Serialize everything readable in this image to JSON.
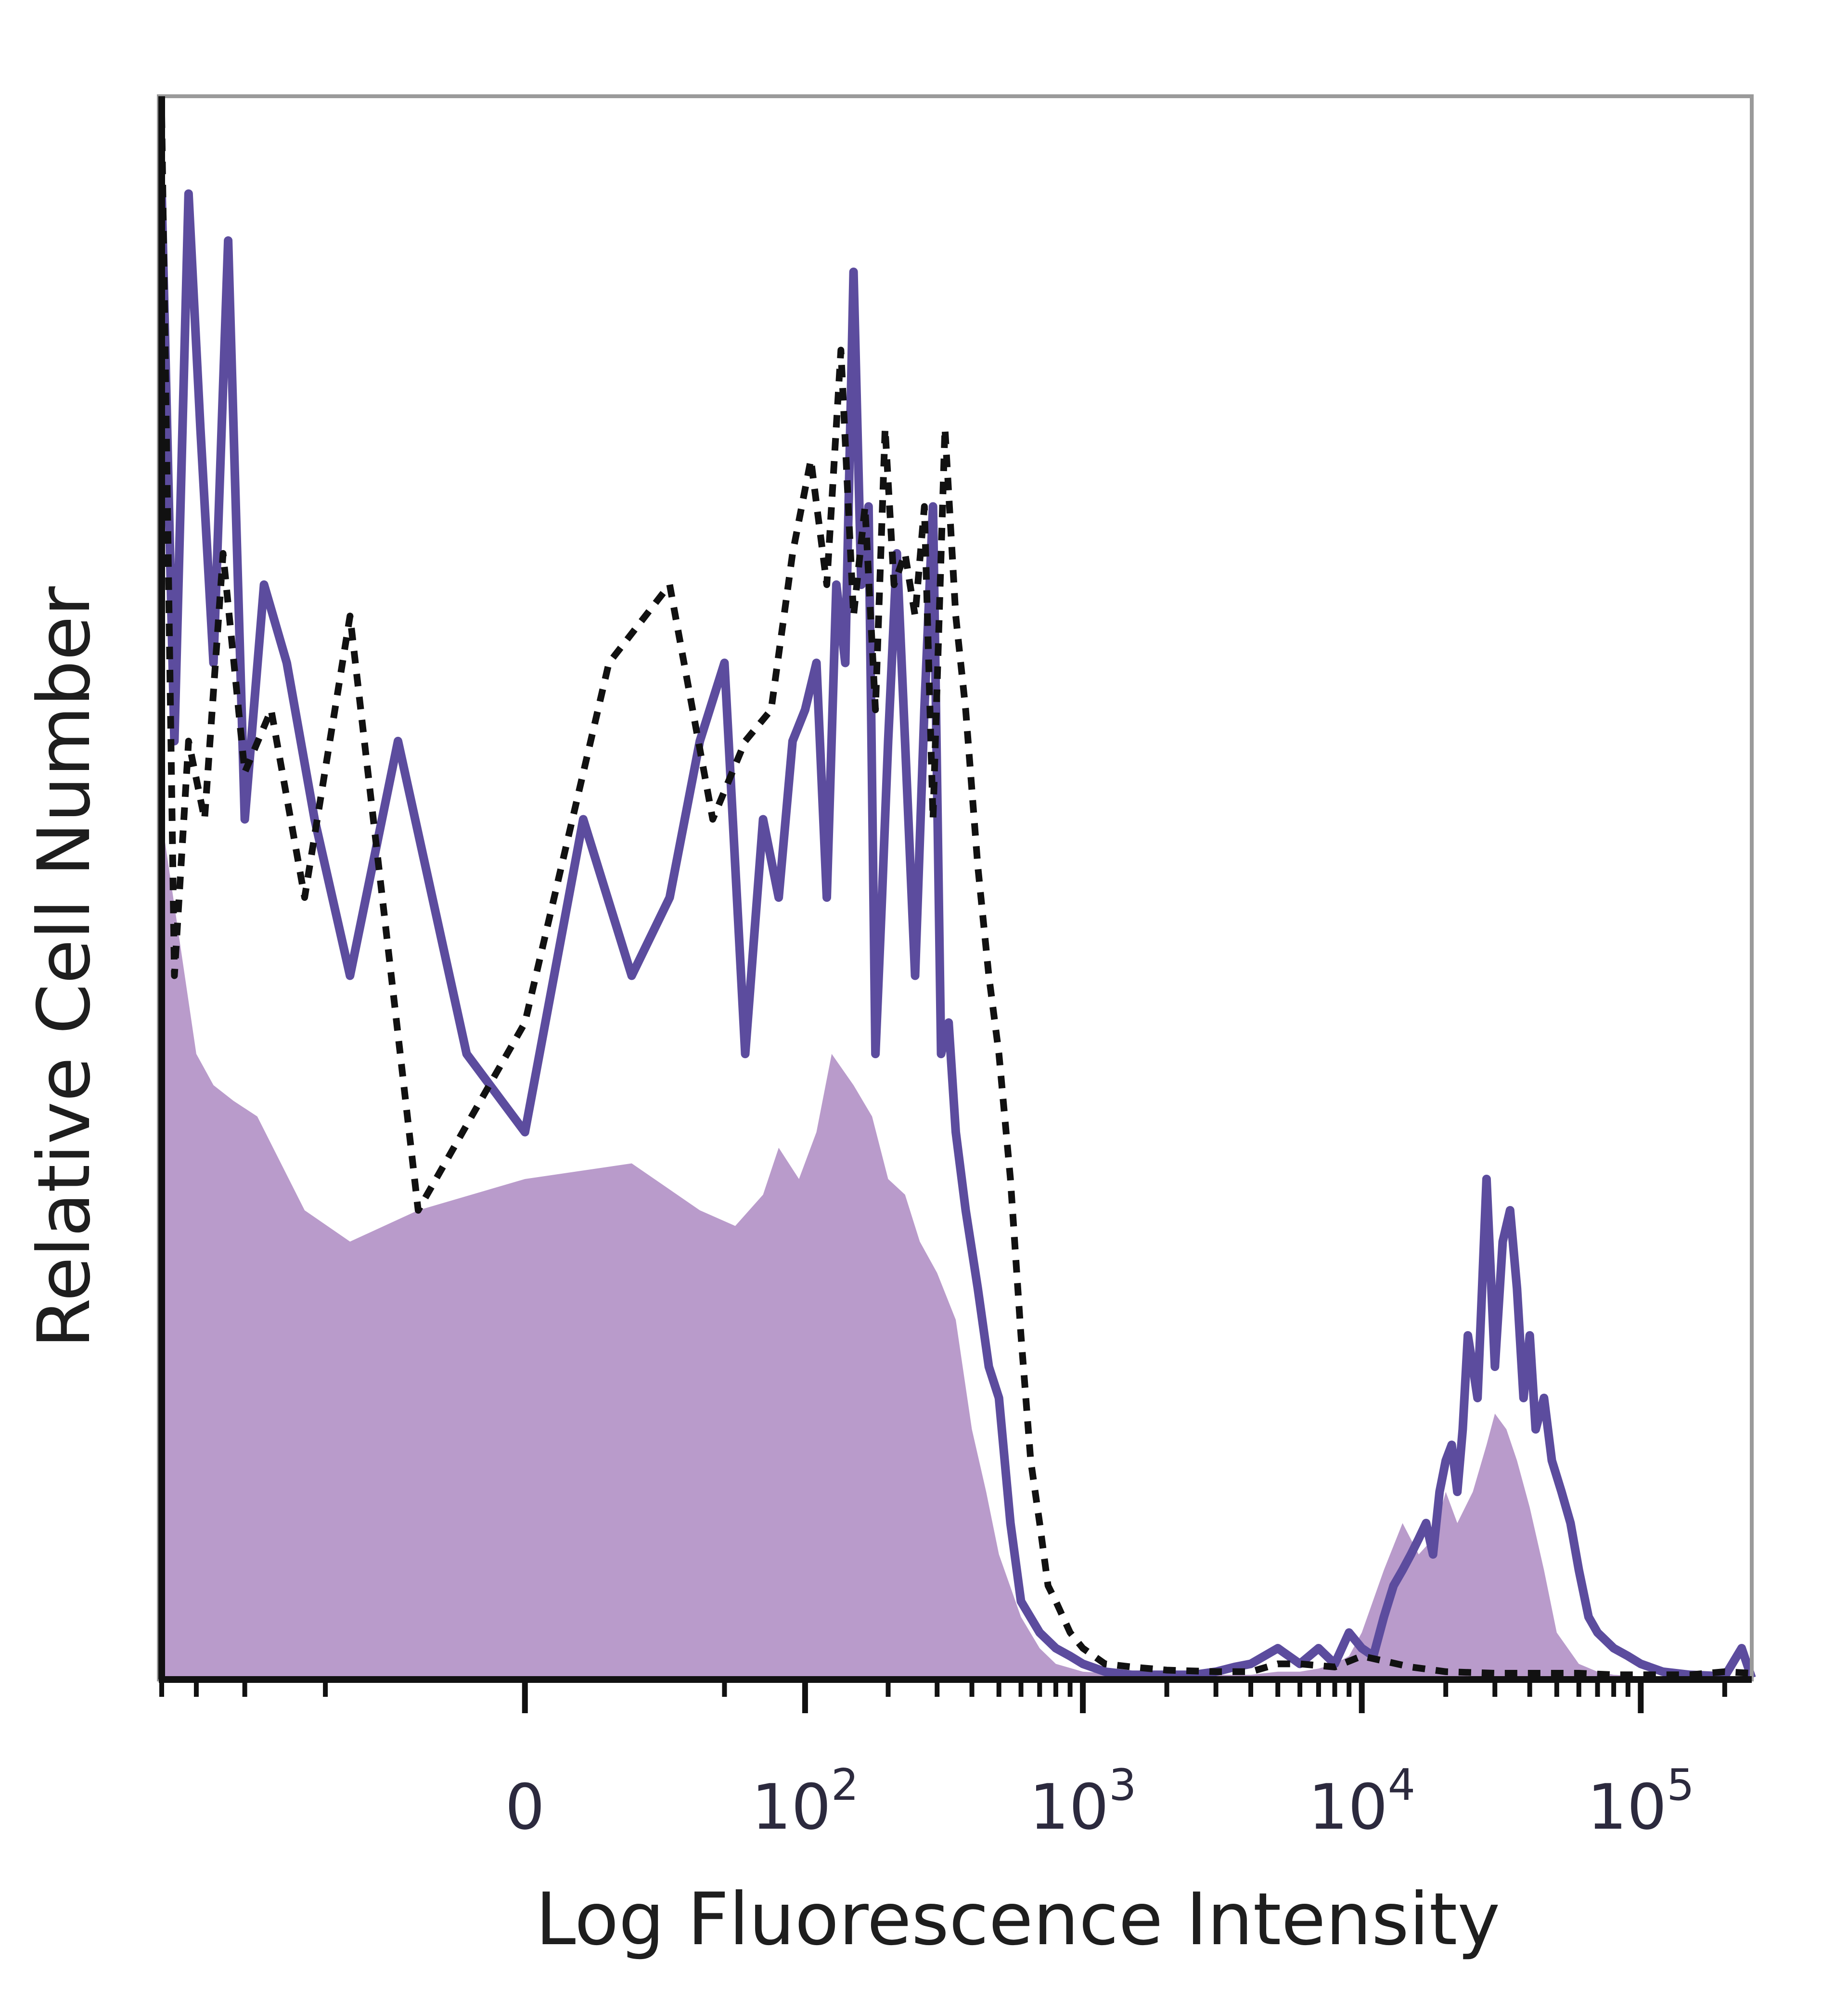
{
  "chart_data": {
    "type": "histogram",
    "xlabel": "Log Fluorescence Intensity",
    "ylabel": "Relative Cell Number",
    "x_scale": "biexponential",
    "x_ticks": [
      {
        "value": 0,
        "label": "0"
      },
      {
        "value": 100,
        "base": "10",
        "exp": "2"
      },
      {
        "value": 1000,
        "base": "10",
        "exp": "3"
      },
      {
        "value": 10000,
        "base": "10",
        "exp": "4"
      },
      {
        "value": 100000,
        "base": "10",
        "exp": "5"
      }
    ],
    "xlim": [
      -200,
      250000
    ],
    "ylim": [
      0,
      100
    ],
    "grid": false,
    "legend": false,
    "colors": {
      "filled": "#b99bcb",
      "outline": "#5c4c9e",
      "dashed": "#111111"
    },
    "series": [
      {
        "style": "filled",
        "x": [
          -200,
          -150,
          -130,
          -110,
          -90,
          -60,
          -40,
          -20,
          0,
          20,
          40,
          55,
          70,
          80,
          95,
          110,
          125,
          150,
          175,
          200,
          230,
          260,
          300,
          350,
          400,
          450,
          500,
          600,
          700,
          800,
          1000,
          1500,
          2000,
          3000,
          4000,
          5000,
          6000,
          7000,
          8000,
          9000,
          10000,
          12000,
          14000,
          16000,
          18000,
          20000,
          22000,
          25000,
          28000,
          30000,
          33000,
          36000,
          40000,
          45000,
          50000,
          60000,
          70000,
          80000,
          100000,
          150000,
          200000,
          250000
        ],
        "y": [
          55,
          40,
          38,
          37,
          36,
          30,
          28,
          30,
          32,
          33,
          30,
          29,
          31,
          34,
          32,
          35,
          40,
          38,
          36,
          32,
          31,
          28,
          26,
          23,
          16,
          12,
          8,
          4,
          2,
          1,
          0.5,
          0.3,
          0.3,
          0.3,
          0.3,
          0.5,
          0.5,
          0.7,
          1,
          1.5,
          3,
          7,
          10,
          8,
          9,
          12,
          10,
          12,
          15,
          17,
          16,
          14,
          11,
          7,
          3,
          1,
          0.5,
          0.3,
          0.2,
          0.2,
          0.2,
          0.1
        ]
      },
      {
        "style": "outline",
        "x": [
          -200,
          -180,
          -160,
          -145,
          -130,
          -115,
          -100,
          -85,
          -70,
          -55,
          -40,
          -25,
          -10,
          0,
          10,
          20,
          30,
          40,
          50,
          60,
          70,
          80,
          90,
          100,
          110,
          120,
          130,
          140,
          150,
          160,
          170,
          180,
          190,
          200,
          215,
          230,
          250,
          270,
          290,
          310,
          330,
          350,
          380,
          420,
          460,
          500,
          550,
          600,
          700,
          800,
          900,
          1000,
          1200,
          1500,
          2000,
          2500,
          3000,
          3500,
          4000,
          5000,
          6000,
          7000,
          8000,
          9000,
          10000,
          11000,
          12000,
          13000,
          14000,
          15000,
          16000,
          17000,
          18000,
          19000,
          20000,
          21000,
          22000,
          23000,
          24000,
          25000,
          26000,
          27000,
          28000,
          30000,
          32000,
          34000,
          36000,
          38000,
          40000,
          42000,
          45000,
          48000,
          52000,
          56000,
          60000,
          65000,
          70000,
          80000,
          90000,
          100000,
          120000,
          150000,
          200000,
          230000,
          250000
        ],
        "y": [
          95,
          60,
          95,
          80,
          65,
          92,
          55,
          70,
          65,
          55,
          45,
          60,
          40,
          35,
          55,
          45,
          50,
          60,
          65,
          40,
          55,
          50,
          60,
          62,
          65,
          50,
          70,
          65,
          90,
          70,
          75,
          40,
          50,
          60,
          72,
          60,
          45,
          62,
          75,
          40,
          42,
          35,
          30,
          25,
          20,
          18,
          10,
          5,
          3,
          2,
          1.5,
          1,
          0.5,
          0.3,
          0.3,
          0.3,
          0.5,
          0.8,
          1,
          2,
          1,
          2,
          1,
          3,
          2,
          1.5,
          4,
          6,
          7,
          8,
          9,
          10,
          8,
          12,
          14,
          15,
          12,
          16,
          22,
          20,
          18,
          25,
          32,
          20,
          28,
          30,
          25,
          18,
          22,
          16,
          18,
          14,
          12,
          10,
          7,
          4,
          3,
          2,
          1.5,
          1,
          0.5,
          0.3,
          0.2,
          2,
          0.1
        ]
      },
      {
        "style": "dashed",
        "x": [
          -200,
          -180,
          -160,
          -140,
          -120,
          -100,
          -80,
          -60,
          -40,
          -20,
          0,
          15,
          30,
          45,
          60,
          75,
          90,
          105,
          120,
          135,
          150,
          165,
          180,
          195,
          210,
          230,
          250,
          270,
          290,
          320,
          350,
          380,
          420,
          460,
          500,
          550,
          600,
          650,
          700,
          750,
          800,
          900,
          1000,
          1200,
          1500,
          2000,
          3000,
          4000,
          5000,
          6000,
          8000,
          10000,
          15000,
          20000,
          30000,
          40000,
          60000,
          80000,
          100000,
          150000,
          200000,
          250000
        ],
        "y": [
          100,
          45,
          60,
          55,
          72,
          58,
          62,
          50,
          68,
          30,
          42,
          65,
          70,
          55,
          60,
          62,
          72,
          78,
          70,
          85,
          68,
          75,
          62,
          80,
          70,
          72,
          68,
          75,
          55,
          80,
          68,
          62,
          52,
          45,
          40,
          32,
          22,
          14,
          10,
          6,
          5,
          3,
          2,
          1,
          0.8,
          0.6,
          0.5,
          0.5,
          1,
          1,
          0.8,
          1.5,
          0.8,
          0.5,
          0.4,
          0.4,
          0.4,
          0.3,
          0.3,
          0.3,
          0.5,
          0.4
        ]
      }
    ]
  }
}
